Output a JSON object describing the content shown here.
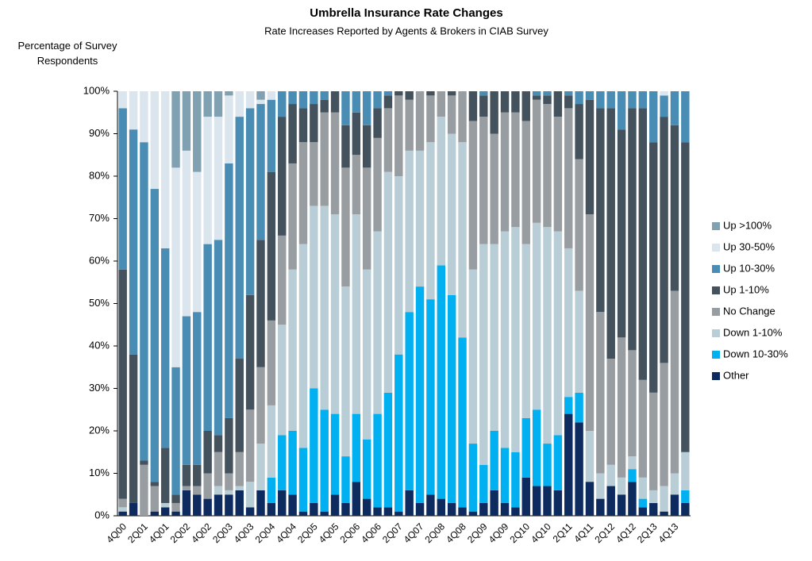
{
  "chart_data": {
    "type": "stacked_bar",
    "title": "Umbrella Insurance Rate Changes",
    "subtitle": "Rate Increases Reported by Agents & Brokers in CIAB Survey",
    "y_label": "Percentage of Survey Respondents",
    "categories": [
      "4Q00",
      null,
      "2Q01",
      null,
      "4Q01",
      null,
      "2Q02",
      null,
      "4Q02",
      null,
      "2Q03",
      null,
      "4Q03",
      null,
      "2Q04",
      null,
      "4Q04",
      null,
      "2Q05",
      null,
      "4Q05",
      null,
      "2Q06",
      null,
      "4Q06",
      null,
      "2Q07",
      null,
      "4Q07",
      null,
      "2Q08",
      null,
      "4Q08",
      null,
      "2Q09",
      null,
      "4Q09",
      null,
      "2Q10",
      null,
      "4Q10",
      null,
      "2Q11",
      null,
      "4Q11",
      null,
      "2Q12",
      null,
      "4Q12",
      null,
      "2Q13",
      null,
      "4Q13",
      null
    ],
    "series": [
      {
        "name": "Other",
        "color": "#0d2b5e",
        "values": [
          1,
          3,
          0,
          1,
          2,
          1,
          6,
          5,
          4,
          5,
          5,
          6,
          2,
          6,
          3,
          6,
          5,
          1,
          3,
          1,
          5,
          3,
          8,
          4,
          2,
          2,
          1,
          6,
          3,
          5,
          4,
          3,
          2,
          1,
          3,
          6,
          3,
          2,
          9,
          7,
          7,
          6,
          24,
          22,
          8,
          4,
          7,
          5,
          8,
          2,
          3,
          1,
          5,
          3
        ]
      },
      {
        "name": "Down 10-30%",
        "color": "#00b0f0",
        "values": [
          0,
          0,
          0,
          0,
          0,
          0,
          0,
          0,
          0,
          0,
          0,
          0,
          0,
          0,
          6,
          13,
          15,
          15,
          27,
          24,
          19,
          11,
          16,
          14,
          22,
          27,
          37,
          42,
          51,
          46,
          55,
          49,
          40,
          16,
          9,
          14,
          13,
          13,
          14,
          18,
          10,
          13,
          4,
          7,
          0,
          0,
          0,
          0,
          3,
          2,
          0,
          0,
          0,
          3
        ]
      },
      {
        "name": "Down 1-10%",
        "color": "#b9cdd6",
        "values": [
          1,
          0,
          0,
          0,
          1,
          0,
          0,
          0,
          0,
          2,
          1,
          1,
          6,
          11,
          17,
          26,
          38,
          48,
          43,
          48,
          47,
          40,
          47,
          40,
          43,
          52,
          42,
          38,
          32,
          37,
          35,
          38,
          46,
          41,
          52,
          44,
          51,
          53,
          41,
          44,
          51,
          48,
          35,
          24,
          12,
          6,
          5,
          4,
          3,
          5,
          3,
          6,
          5,
          9
        ]
      },
      {
        "name": "No Change",
        "color": "#989da1",
        "values": [
          2,
          0,
          12,
          6,
          0,
          2,
          1,
          2,
          6,
          8,
          4,
          8,
          17,
          18,
          20,
          21,
          25,
          24,
          15,
          22,
          24,
          28,
          14,
          24,
          22,
          15,
          19,
          12,
          14,
          11,
          6,
          9,
          12,
          35,
          30,
          26,
          28,
          27,
          29,
          29,
          29,
          27,
          33,
          31,
          51,
          38,
          25,
          33,
          25,
          23,
          23,
          29,
          43,
          0
        ]
      },
      {
        "name": "Up 1-10%",
        "color": "#44525e",
        "values": [
          54,
          35,
          1,
          1,
          13,
          2,
          5,
          5,
          10,
          4,
          13,
          22,
          27,
          30,
          35,
          28,
          14,
          8,
          9,
          3,
          5,
          10,
          10,
          10,
          7,
          3,
          1,
          2,
          0,
          1,
          0,
          1,
          0,
          7,
          5,
          10,
          5,
          5,
          7,
          1,
          2,
          6,
          3,
          13,
          27,
          48,
          59,
          49,
          57,
          64,
          59,
          58,
          39,
          73
        ]
      },
      {
        "name": "Up 10-30%",
        "color": "#4a8db4",
        "values": [
          38,
          53,
          75,
          69,
          47,
          30,
          35,
          36,
          44,
          46,
          60,
          57,
          44,
          32,
          17,
          6,
          3,
          4,
          3,
          2,
          0,
          8,
          5,
          8,
          4,
          1,
          0,
          0,
          0,
          0,
          0,
          0,
          0,
          0,
          1,
          0,
          0,
          0,
          0,
          1,
          1,
          0,
          1,
          3,
          2,
          4,
          4,
          9,
          4,
          4,
          12,
          5,
          8,
          12
        ]
      },
      {
        "name": "Up 30-50%",
        "color": "#dae5ed",
        "values": [
          4,
          9,
          12,
          23,
          37,
          47,
          39,
          33,
          30,
          29,
          16,
          6,
          4,
          1,
          2,
          0,
          0,
          0,
          0,
          0,
          0,
          0,
          0,
          0,
          0,
          0,
          0,
          0,
          0,
          0,
          0,
          0,
          0,
          0,
          0,
          0,
          0,
          0,
          0,
          0,
          0,
          0,
          0,
          0,
          0,
          0,
          0,
          0,
          0,
          0,
          0,
          1,
          0,
          0
        ]
      },
      {
        "name": "Up >100%",
        "color": "#7fa1b2",
        "values": [
          0,
          0,
          0,
          0,
          0,
          18,
          14,
          19,
          6,
          6,
          1,
          0,
          0,
          2,
          0,
          0,
          0,
          0,
          0,
          0,
          0,
          0,
          0,
          0,
          0,
          0,
          0,
          0,
          0,
          0,
          0,
          0,
          0,
          0,
          0,
          0,
          0,
          0,
          0,
          0,
          0,
          0,
          0,
          0,
          0,
          0,
          0,
          0,
          0,
          0,
          0,
          0,
          0,
          0
        ]
      }
    ],
    "ylim": [
      0,
      100
    ],
    "yticks": [
      {
        "value": 0,
        "label": "0%"
      },
      {
        "value": 10,
        "label": "10%"
      },
      {
        "value": 20,
        "label": "20%"
      },
      {
        "value": 30,
        "label": "30%"
      },
      {
        "value": 40,
        "label": "40%"
      },
      {
        "value": 50,
        "label": "50%"
      },
      {
        "value": 60,
        "label": "60%"
      },
      {
        "value": 70,
        "label": "70%"
      },
      {
        "value": 80,
        "label": "80%"
      },
      {
        "value": 90,
        "label": "90%"
      },
      {
        "value": 100,
        "label": "100%"
      }
    ],
    "legend": "right"
  }
}
